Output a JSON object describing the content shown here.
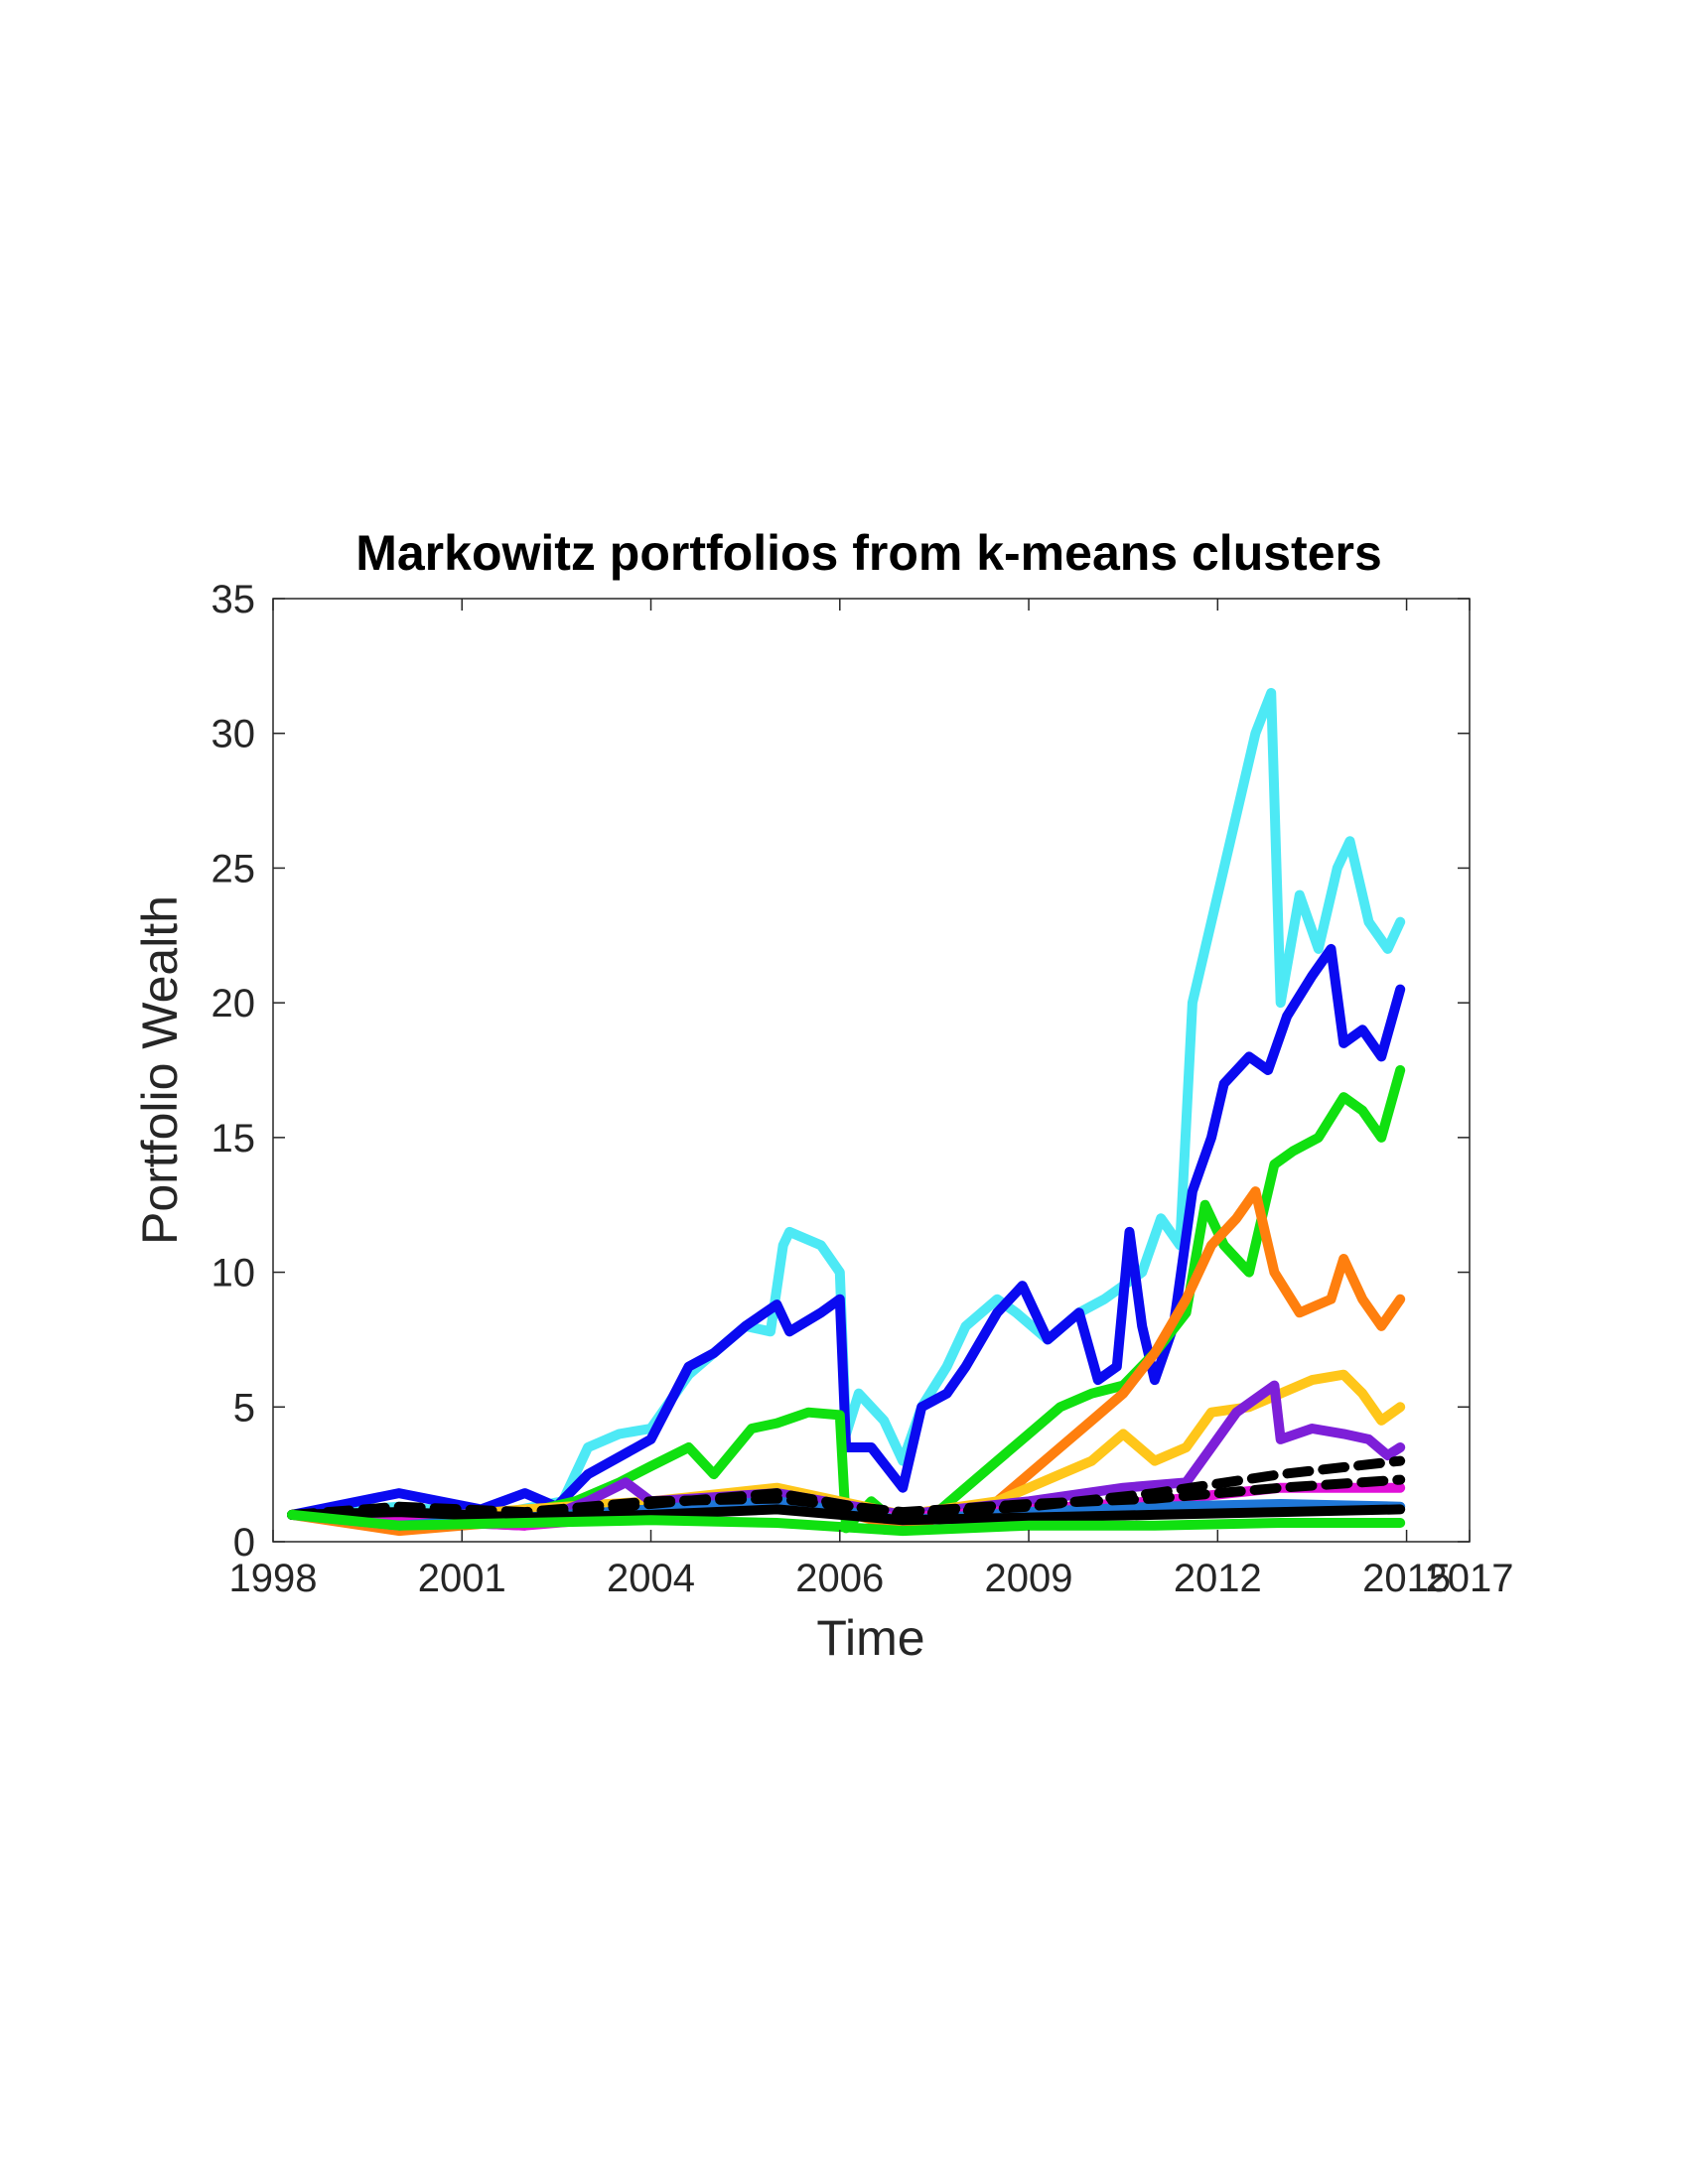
{
  "chart_data": {
    "type": "line",
    "title": "Markowitz portfolios from k-means clusters",
    "xlabel": "Time",
    "ylabel": "Portfolio Wealth",
    "xlim": [
      1998,
      2017
    ],
    "ylim": [
      0,
      35
    ],
    "xticks": [
      "1998",
      "2001",
      "2004",
      "2006",
      "2009",
      "2012",
      "2015",
      "2017"
    ],
    "yticks": [
      "0",
      "5",
      "10",
      "15",
      "20",
      "25",
      "30",
      "35"
    ],
    "grid": false,
    "legend": "none",
    "series": [
      {
        "color": "#4de9f5",
        "style": "solid",
        "x": [
          1998.3,
          2000.0,
          2001.5,
          2002.6,
          2003.0,
          2003.5,
          2004.0,
          2004.6,
          2005.0,
          2005.5,
          2005.9,
          2006.1,
          2006.2,
          2006.7,
          2007.0,
          2007.1,
          2007.3,
          2007.7,
          2008.0,
          2008.3,
          2008.7,
          2009.0,
          2009.5,
          2009.8,
          2010.3,
          2010.8,
          2011.2,
          2011.8,
          2012.1,
          2012.4,
          2012.6,
          2012.8,
          2013.1,
          2013.4,
          2013.6,
          2013.85,
          2014.0,
          2014.3,
          2014.6,
          2014.9,
          2015.1,
          2015.4,
          2015.7,
          2015.9
        ],
        "y": [
          1.0,
          1.3,
          1.0,
          1.5,
          3.5,
          4.0,
          4.2,
          6.2,
          7.0,
          8.0,
          7.8,
          11.0,
          11.5,
          11.0,
          10.0,
          4.0,
          5.5,
          4.5,
          3.0,
          5.0,
          6.5,
          8.0,
          9.0,
          8.5,
          7.5,
          8.5,
          9.0,
          10.0,
          12.0,
          11.0,
          20.0,
          22.0,
          25.0,
          28.0,
          30.0,
          31.5,
          20.0,
          24.0,
          22.0,
          25.0,
          26.0,
          23.0,
          22.0,
          23.0
        ]
      },
      {
        "color": "#0a0af0",
        "style": "solid",
        "x": [
          1998.3,
          2000.0,
          2001.3,
          2002.0,
          2002.5,
          2003.0,
          2004.0,
          2004.6,
          2005.0,
          2005.5,
          2006.0,
          2006.2,
          2006.7,
          2007.0,
          2007.1,
          2007.5,
          2008.0,
          2008.3,
          2008.7,
          2009.0,
          2009.5,
          2009.9,
          2010.3,
          2010.8,
          2011.1,
          2011.4,
          2011.6,
          2011.8,
          2012.0,
          2012.3,
          2012.6,
          2012.9,
          2013.1,
          2013.5,
          2013.8,
          2014.1,
          2014.5,
          2014.8,
          2015.0,
          2015.3,
          2015.6,
          2015.9
        ],
        "y": [
          1.0,
          1.8,
          1.2,
          1.8,
          1.3,
          2.5,
          3.8,
          6.5,
          7.0,
          8.0,
          8.8,
          7.8,
          8.5,
          9.0,
          3.5,
          3.5,
          2.0,
          5.0,
          5.5,
          6.5,
          8.5,
          9.5,
          7.5,
          8.5,
          6.0,
          6.5,
          11.5,
          8.0,
          6.0,
          8.0,
          13.0,
          15.0,
          17.0,
          18.0,
          17.5,
          19.5,
          21.0,
          22.0,
          18.5,
          19.0,
          18.0,
          20.5
        ]
      },
      {
        "color": "#10e010",
        "style": "solid",
        "x": [
          1998.3,
          2000.0,
          2001.5,
          2002.8,
          2003.5,
          2004.0,
          2004.6,
          2005.0,
          2005.6,
          2006.0,
          2006.5,
          2007.0,
          2007.1,
          2007.5,
          2008.0,
          2008.5,
          2009.0,
          2009.5,
          2010.0,
          2010.5,
          2011.0,
          2011.5,
          2012.0,
          2012.5,
          2012.8,
          2013.1,
          2013.5,
          2013.9,
          2014.2,
          2014.6,
          2015.0,
          2015.3,
          2015.6,
          2015.9
        ],
        "y": [
          1.0,
          0.5,
          0.8,
          1.5,
          2.2,
          2.8,
          3.5,
          2.5,
          4.2,
          4.4,
          4.8,
          4.7,
          0.5,
          1.5,
          0.5,
          1.0,
          2.0,
          3.0,
          4.0,
          5.0,
          5.5,
          5.8,
          7.0,
          8.5,
          12.5,
          11.0,
          10.0,
          14.0,
          14.5,
          15.0,
          16.5,
          16.0,
          15.0,
          17.5
        ]
      },
      {
        "color": "#ff7f0e",
        "style": "solid",
        "x": [
          1998.3,
          2000.0,
          2002.0,
          2004.0,
          2006.0,
          2008.0,
          2009.5,
          2010.5,
          2011.0,
          2011.5,
          2012.0,
          2012.5,
          2012.9,
          2013.3,
          2013.6,
          2013.9,
          2014.3,
          2014.8,
          2015.0,
          2015.3,
          2015.6,
          2015.9
        ],
        "y": [
          1.0,
          0.4,
          0.8,
          1.2,
          1.8,
          0.5,
          1.5,
          3.5,
          4.5,
          5.5,
          7.0,
          9.0,
          11.0,
          12.0,
          13.0,
          10.0,
          8.5,
          9.0,
          10.5,
          9.0,
          8.0,
          9.0
        ]
      },
      {
        "color": "#ffc61a",
        "style": "solid",
        "x": [
          1998.3,
          2000.0,
          2002.0,
          2004.0,
          2006.0,
          2008.0,
          2009.5,
          2010.5,
          2011.0,
          2011.5,
          2012.0,
          2012.5,
          2012.9,
          2013.5,
          2014.0,
          2014.5,
          2015.0,
          2015.3,
          2015.6,
          2015.9
        ],
        "y": [
          1.0,
          0.8,
          1.2,
          1.5,
          2.0,
          1.0,
          1.5,
          2.5,
          3.0,
          4.0,
          3.0,
          3.5,
          4.8,
          5.0,
          5.5,
          6.0,
          6.2,
          5.5,
          4.5,
          5.0
        ]
      },
      {
        "color": "#7d1fd8",
        "style": "solid",
        "x": [
          1998.3,
          2000.0,
          2002.0,
          2003.0,
          2003.6,
          2004.0,
          2006.0,
          2008.0,
          2010.0,
          2011.5,
          2012.5,
          2012.9,
          2013.3,
          2013.9,
          2014.0,
          2014.5,
          2015.0,
          2015.4,
          2015.7,
          2015.9
        ],
        "y": [
          1.0,
          0.8,
          0.6,
          1.5,
          2.2,
          1.5,
          1.8,
          1.0,
          1.5,
          2.0,
          2.2,
          3.5,
          4.8,
          5.8,
          3.8,
          4.2,
          4.0,
          3.8,
          3.2,
          3.5
        ]
      },
      {
        "color": "#e010d8",
        "style": "solid",
        "x": [
          1998.3,
          2000.0,
          2002.0,
          2004.0,
          2006.0,
          2008.0,
          2010.0,
          2012.0,
          2014.0,
          2015.9
        ],
        "y": [
          1.0,
          0.8,
          0.6,
          1.0,
          1.3,
          0.9,
          1.2,
          1.5,
          2.0,
          2.0
        ]
      },
      {
        "color": "#1f77d8",
        "style": "solid",
        "x": [
          1998.3,
          2000.0,
          2002.0,
          2004.0,
          2006.0,
          2008.0,
          2010.0,
          2012.0,
          2014.0,
          2015.9
        ],
        "y": [
          1.0,
          0.6,
          0.9,
          1.2,
          1.5,
          0.8,
          1.1,
          1.3,
          1.4,
          1.3
        ]
      },
      {
        "color": "#000000",
        "style": "dashed",
        "x": [
          1998.3,
          2000.0,
          2002.0,
          2004.0,
          2006.0,
          2008.0,
          2010.0,
          2012.0,
          2014.0,
          2015.9
        ],
        "y": [
          1.0,
          1.2,
          1.0,
          1.4,
          1.8,
          1.0,
          1.3,
          1.8,
          2.5,
          3.0
        ]
      },
      {
        "color": "#000000",
        "style": "dashed",
        "x": [
          1998.3,
          2000.0,
          2002.0,
          2004.0,
          2006.0,
          2008.0,
          2010.0,
          2012.0,
          2014.0,
          2015.9
        ],
        "y": [
          1.0,
          1.3,
          1.1,
          1.5,
          1.6,
          1.1,
          1.4,
          1.6,
          2.0,
          2.3
        ]
      },
      {
        "color": "#000000",
        "style": "solid",
        "x": [
          1998.3,
          2000.0,
          2002.0,
          2004.0,
          2006.0,
          2008.0,
          2010.0,
          2012.0,
          2014.0,
          2015.9
        ],
        "y": [
          1.0,
          1.1,
          0.9,
          1.0,
          1.2,
          0.8,
          0.9,
          1.0,
          1.1,
          1.2
        ]
      },
      {
        "color": "#10e010",
        "style": "solid",
        "x": [
          1998.3,
          2000.0,
          2002.0,
          2004.0,
          2006.0,
          2008.0,
          2010.0,
          2012.0,
          2014.0,
          2015.9
        ],
        "y": [
          1.0,
          0.6,
          0.7,
          0.8,
          0.7,
          0.4,
          0.6,
          0.6,
          0.7,
          0.7
        ]
      }
    ]
  }
}
